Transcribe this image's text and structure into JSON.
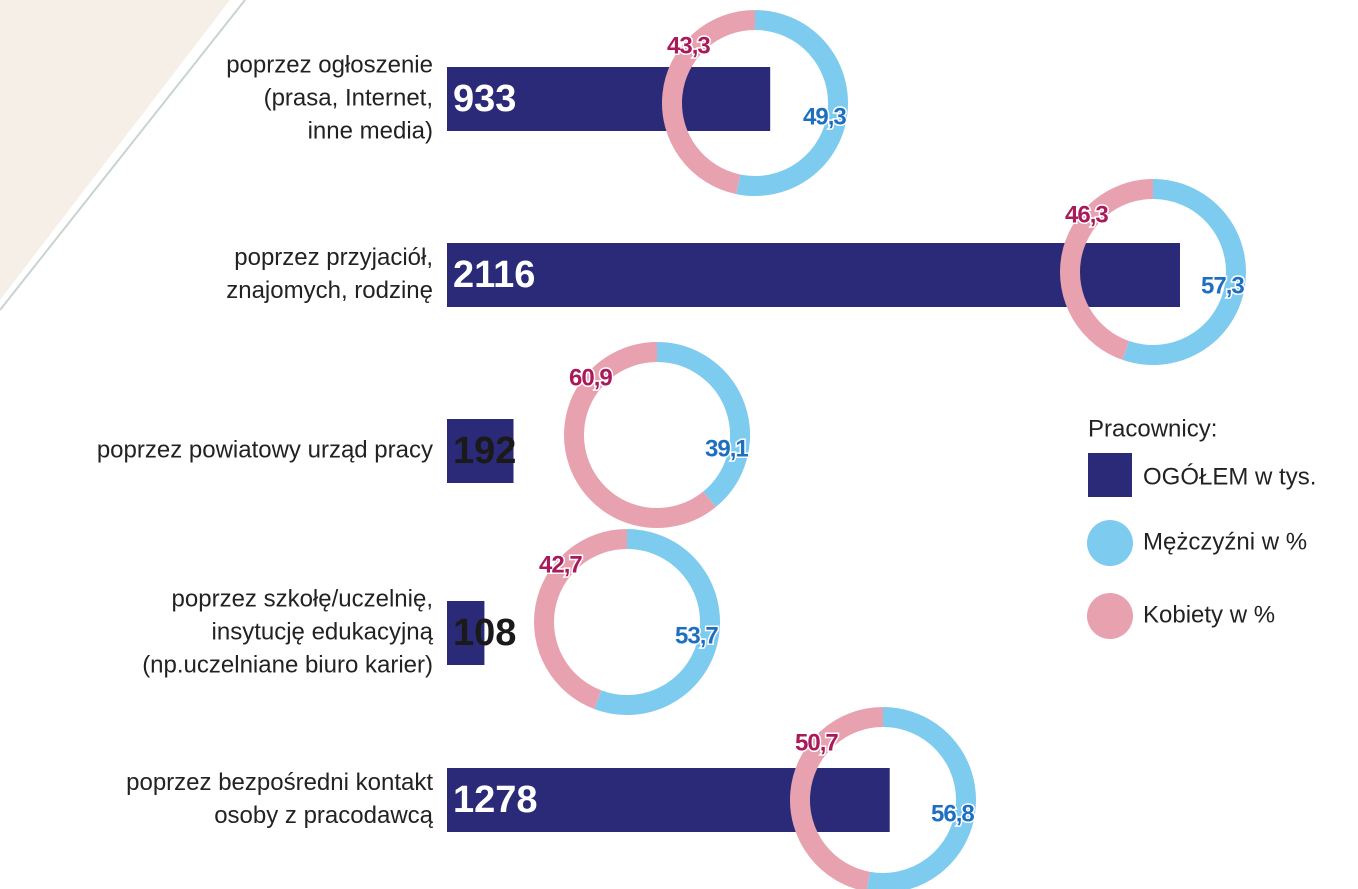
{
  "chart_data": {
    "type": "bar-donut",
    "categories": [
      [
        "poprzez ogłoszenie",
        "(prasa, Internet,",
        "inne media)"
      ],
      [
        "poprzez przyjaciół,",
        "znajomych, rodzinę"
      ],
      [
        "poprzez powiatowy urząd pracy"
      ],
      [
        "poprzez szkołę/uczelnię,",
        "insytucję edukacyjną",
        "(np.uczelniane biuro karier)"
      ],
      [
        "poprzez bezpośredni kontakt",
        "osoby z pracodawcą"
      ]
    ],
    "legend_title": "Pracownicy:",
    "series": [
      {
        "name": "OGÓŁEM w tys.",
        "color": "#2a2a78",
        "values": [
          933,
          2116,
          192,
          108,
          1278
        ]
      },
      {
        "name": "Mężczyźni w %",
        "color": "#7ecbf0",
        "values": [
          49.3,
          57.3,
          39.1,
          53.7,
          56.8
        ],
        "value_labels": [
          "49,3",
          "57,3",
          "39,1",
          "53,7",
          "56,8"
        ]
      },
      {
        "name": "Kobiety w %",
        "color": "#e8a2af",
        "values": [
          43.3,
          46.3,
          60.9,
          42.7,
          50.7
        ],
        "value_labels": [
          "43,3",
          "46,3",
          "60,9",
          "42,7",
          "50,7"
        ]
      }
    ]
  }
}
